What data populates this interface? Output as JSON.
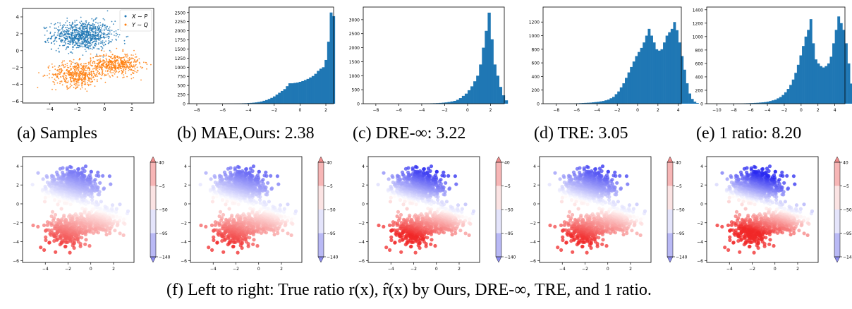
{
  "colors": {
    "blue": "#1f77b4",
    "orange": "#ff7f0e",
    "axis": "#000000",
    "neg": "#3333ee",
    "pos": "#ee2222"
  },
  "captions": {
    "a": "(a) Samples",
    "b": "(b) MAE,Ours: 2.38",
    "c": "(c) DRE-∞: 3.22",
    "d": "(d) TRE: 3.05",
    "e": "(e) 1 ratio: 8.20",
    "f": "(f) Left to right: True ratio r(x), r̂(x) by Ours, DRE-∞, TRE, and 1 ratio."
  },
  "chart_data": [
    {
      "id": "a",
      "type": "scatter",
      "legend": {
        "placement": "top-right",
        "entries": [
          "X ∼ P",
          "Y ∼ Q"
        ]
      },
      "xlim": [
        -6,
        3.6
      ],
      "ylim": [
        -6.2,
        5
      ],
      "xticks": [
        -4,
        -2,
        0,
        2
      ],
      "yticks": [
        -6,
        -4,
        -2,
        0,
        2,
        4
      ],
      "series": [
        {
          "name": "X ∼ P",
          "color": "#1f77b4",
          "clusters": [
            {
              "cx": -1.6,
              "cy": 1.8,
              "sx": 1.1,
              "sy": 0.85,
              "n": 900
            }
          ]
        },
        {
          "name": "Y ∼ Q",
          "color": "#ff7f0e",
          "clusters": [
            {
              "cx": -2.0,
              "cy": -2.8,
              "sx": 0.9,
              "sy": 0.75,
              "n": 500
            },
            {
              "cx": 0.8,
              "cy": -1.6,
              "sx": 0.9,
              "sy": 0.65,
              "n": 500
            }
          ]
        }
      ]
    },
    {
      "id": "b",
      "type": "bar",
      "title": "MAE,Ours: 2.38",
      "xlim": [
        -8.6,
        2.6
      ],
      "xticks": [
        -8,
        -6,
        -4,
        -2,
        0,
        2
      ],
      "ylim": [
        0,
        2650
      ],
      "yticks": [
        0,
        250,
        500,
        750,
        1000,
        1250,
        1500,
        1750,
        2000,
        2250,
        2500
      ],
      "bin_start": -8.5,
      "bin_width": 0.2,
      "values": [
        2,
        1,
        1,
        1,
        1,
        1,
        2,
        2,
        2,
        2,
        2,
        3,
        3,
        3,
        4,
        5,
        5,
        6,
        8,
        10,
        12,
        14,
        18,
        22,
        28,
        36,
        46,
        60,
        80,
        100,
        130,
        160,
        200,
        250,
        300,
        350,
        400,
        480,
        560,
        560,
        570,
        580,
        600,
        620,
        650,
        680,
        720,
        760,
        820,
        900,
        960,
        1000,
        1200,
        1700,
        2500,
        2400
      ]
    },
    {
      "id": "c",
      "type": "bar",
      "title": "DRE-∞: 3.22",
      "xlim": [
        -9.1,
        3.2
      ],
      "xticks": [
        -8,
        -6,
        -4,
        -2,
        0,
        2
      ],
      "ylim": [
        0,
        3450
      ],
      "yticks": [
        0,
        500,
        1000,
        1500,
        2000,
        2500,
        3000
      ],
      "bin_start": -9.0,
      "bin_width": 0.25,
      "values": [
        1,
        1,
        1,
        1,
        1,
        1,
        1,
        1,
        2,
        2,
        2,
        2,
        2,
        3,
        3,
        3,
        4,
        4,
        5,
        6,
        8,
        10,
        12,
        15,
        18,
        22,
        28,
        36,
        46,
        60,
        80,
        100,
        140,
        200,
        280,
        360,
        480,
        620,
        800,
        1000,
        1400,
        2000,
        2600,
        3250,
        2300,
        1400,
        1000,
        600,
        300,
        120
      ]
    },
    {
      "id": "d",
      "type": "bar",
      "title": "TRE: 3.05",
      "xlim": [
        -9.3,
        4.3
      ],
      "xticks": [
        -8,
        -6,
        -4,
        -2,
        0,
        2,
        4
      ],
      "ylim": [
        0,
        1420
      ],
      "yticks": [
        0,
        200,
        400,
        600,
        800,
        1000,
        1200
      ],
      "bin_start": -9.0,
      "bin_width": 0.25,
      "values": [
        2,
        2,
        2,
        2,
        2,
        3,
        3,
        3,
        3,
        4,
        4,
        5,
        6,
        8,
        10,
        12,
        14,
        16,
        20,
        24,
        28,
        34,
        40,
        50,
        60,
        80,
        100,
        140,
        180,
        240,
        300,
        380,
        460,
        540,
        620,
        700,
        760,
        820,
        900,
        1000,
        1100,
        1000,
        900,
        800,
        780,
        800,
        900,
        1000,
        1050,
        1100,
        1200,
        1080,
        900,
        700,
        500,
        300,
        150,
        70,
        30,
        10
      ]
    },
    {
      "id": "e",
      "type": "bar",
      "title": "1 ratio: 8.20",
      "xlim": [
        -11.2,
        5.2
      ],
      "xticks": [
        -10,
        -8,
        -6,
        -4,
        -2,
        0,
        2,
        4
      ],
      "ylim": [
        0,
        1440
      ],
      "yticks": [
        0,
        200,
        400,
        600,
        800,
        1000,
        1200,
        1400
      ],
      "bin_start": -11.0,
      "bin_width": 0.3,
      "values": [
        1,
        1,
        1,
        1,
        1,
        2,
        2,
        2,
        2,
        3,
        3,
        4,
        4,
        5,
        6,
        7,
        8,
        10,
        12,
        14,
        17,
        20,
        24,
        30,
        40,
        50,
        60,
        80,
        100,
        130,
        170,
        220,
        280,
        360,
        460,
        580,
        720,
        860,
        1000,
        1100,
        1260,
        900,
        660,
        600,
        560,
        540,
        560,
        600,
        700,
        900,
        1100,
        1300,
        1200,
        1100,
        900,
        600,
        300,
        120,
        40
      ]
    },
    {
      "id": "f1",
      "type": "scatter",
      "subtype": "colored-ratio",
      "label": "True ratio r(x)",
      "gain": 0.6,
      "colorbar": {
        "ticks": [
          40,
          -5,
          -50,
          -95,
          -140
        ]
      },
      "xlim": [
        -6,
        3.8
      ],
      "ylim": [
        -6.2,
        5
      ],
      "xticks": [
        -4,
        -2,
        0,
        2
      ],
      "yticks": [
        -6,
        -4,
        -2,
        0,
        2,
        4
      ]
    },
    {
      "id": "f2",
      "type": "scatter",
      "subtype": "colored-ratio",
      "label": "r̂(x) by Ours",
      "gain": 0.65,
      "colorbar": {
        "ticks": [
          40,
          -5,
          -50,
          -95,
          -140
        ]
      },
      "xlim": [
        -6,
        3.8
      ],
      "ylim": [
        -6.2,
        5
      ],
      "xticks": [
        -4,
        -2,
        0,
        2
      ],
      "yticks": [
        -6,
        -4,
        -2,
        0,
        2,
        4
      ]
    },
    {
      "id": "f3",
      "type": "scatter",
      "subtype": "colored-ratio",
      "label": "r̂(x) by DRE-∞",
      "gain": 0.85,
      "colorbar": {
        "ticks": [
          40,
          -5,
          -50,
          -95,
          -140
        ]
      },
      "xlim": [
        -6,
        3.8
      ],
      "ylim": [
        -6.2,
        5
      ],
      "xticks": [
        -4,
        -2,
        0,
        2
      ],
      "yticks": [
        -6,
        -4,
        -2,
        0,
        2,
        4
      ]
    },
    {
      "id": "f4",
      "type": "scatter",
      "subtype": "colored-ratio",
      "label": "r̂(x) by TRE",
      "gain": 0.75,
      "colorbar": {
        "ticks": [
          40,
          -5,
          -50,
          -95,
          -140
        ]
      },
      "xlim": [
        -6,
        3.8
      ],
      "ylim": [
        -6.2,
        5
      ],
      "xticks": [
        -4,
        -2,
        0,
        2
      ],
      "yticks": [
        -6,
        -4,
        -2,
        0,
        2,
        4
      ]
    },
    {
      "id": "f5",
      "type": "scatter",
      "subtype": "colored-ratio",
      "label": "r̂(x) by 1 ratio",
      "gain": 1.0,
      "colorbar": {
        "ticks": [
          40,
          -5,
          -50,
          -95,
          -140
        ]
      },
      "xlim": [
        -6,
        3.8
      ],
      "ylim": [
        -6.2,
        5
      ],
      "xticks": [
        -4,
        -2,
        0,
        2
      ],
      "yticks": [
        -6,
        -4,
        -2,
        0,
        2,
        4
      ]
    }
  ]
}
